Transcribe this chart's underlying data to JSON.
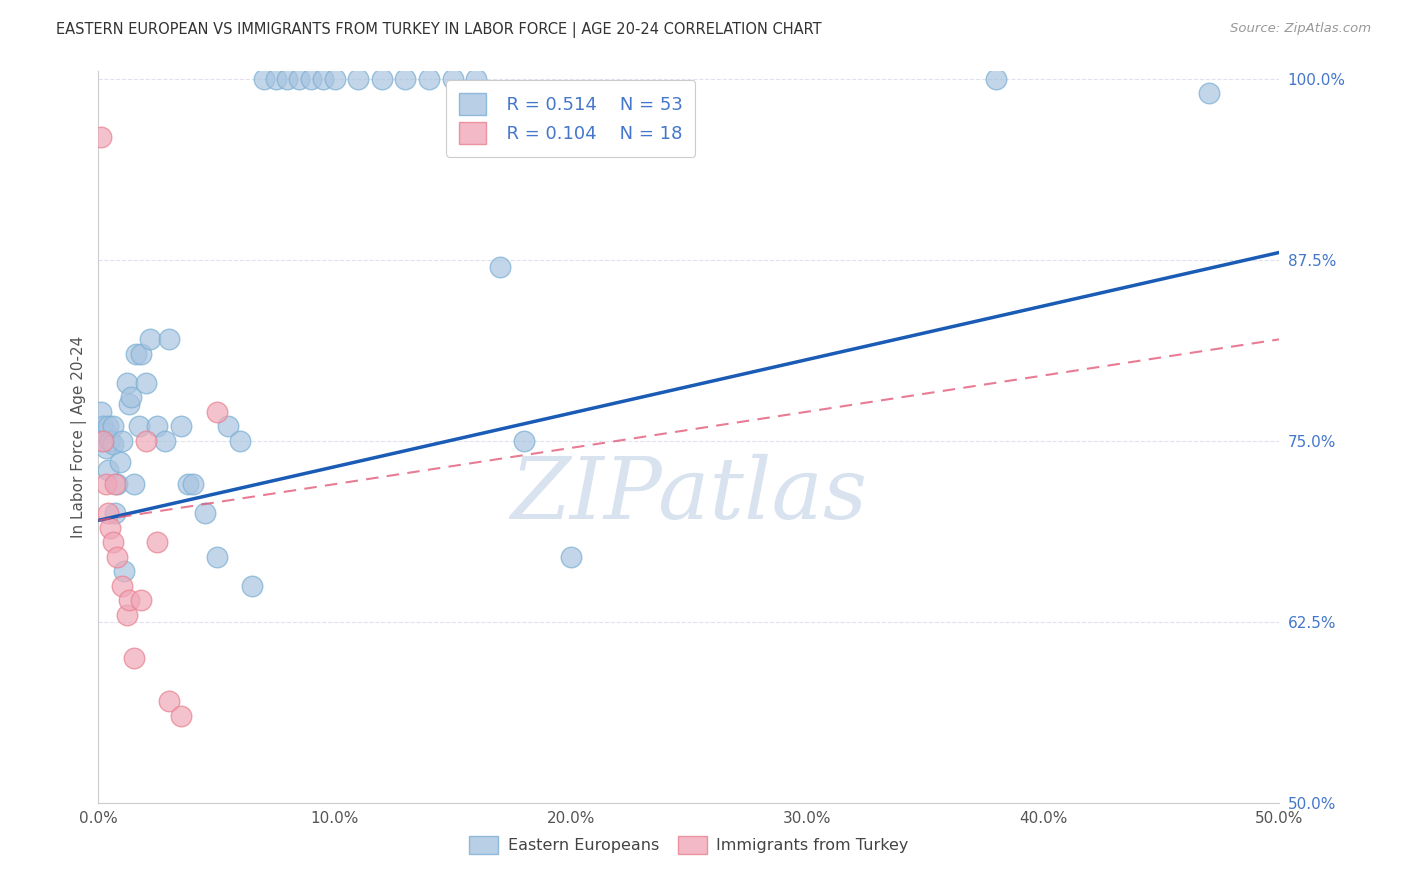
{
  "title": "EASTERN EUROPEAN VS IMMIGRANTS FROM TURKEY IN LABOR FORCE | AGE 20-24 CORRELATION CHART",
  "source": "Source: ZipAtlas.com",
  "ylabel": "In Labor Force | Age 20-24",
  "xlim": [
    0.0,
    0.5
  ],
  "ylim": [
    0.5,
    1.005
  ],
  "xticks": [
    0.0,
    0.1,
    0.2,
    0.3,
    0.4,
    0.5
  ],
  "yticks": [
    0.5,
    0.625,
    0.75,
    0.875,
    1.0
  ],
  "xticklabels": [
    "0.0%",
    "10.0%",
    "20.0%",
    "30.0%",
    "40.0%",
    "50.0%"
  ],
  "yticklabels": [
    "50.0%",
    "62.5%",
    "75.0%",
    "87.5%",
    "100.0%"
  ],
  "blue_color": "#A8C4E0",
  "pink_color": "#F0A8B8",
  "blue_edge_color": "#7AAFD4",
  "pink_edge_color": "#E88090",
  "blue_line_color": "#1A5BB5",
  "pink_line_color": "#E05070",
  "legend_R_blue": "R = 0.514",
  "legend_N_blue": "N = 53",
  "legend_R_pink": "R = 0.104",
  "legend_N_pink": "N = 18",
  "blue_scatter_x": [
    0.001,
    0.001,
    0.002,
    0.003,
    0.003,
    0.004,
    0.004,
    0.005,
    0.006,
    0.006,
    0.007,
    0.008,
    0.009,
    0.01,
    0.011,
    0.012,
    0.013,
    0.014,
    0.015,
    0.016,
    0.017,
    0.018,
    0.02,
    0.022,
    0.025,
    0.028,
    0.03,
    0.035,
    0.038,
    0.04,
    0.045,
    0.05,
    0.055,
    0.06,
    0.065,
    0.07,
    0.075,
    0.08,
    0.085,
    0.09,
    0.095,
    0.1,
    0.11,
    0.12,
    0.13,
    0.14,
    0.15,
    0.16,
    0.17,
    0.18,
    0.2,
    0.38,
    0.47
  ],
  "blue_scatter_y": [
    0.75,
    0.77,
    0.76,
    0.745,
    0.755,
    0.73,
    0.76,
    0.75,
    0.748,
    0.76,
    0.7,
    0.72,
    0.735,
    0.75,
    0.66,
    0.79,
    0.775,
    0.78,
    0.72,
    0.81,
    0.76,
    0.81,
    0.79,
    0.82,
    0.76,
    0.75,
    0.82,
    0.76,
    0.72,
    0.72,
    0.7,
    0.67,
    0.76,
    0.75,
    0.65,
    1.0,
    1.0,
    1.0,
    1.0,
    1.0,
    1.0,
    1.0,
    1.0,
    1.0,
    1.0,
    1.0,
    1.0,
    1.0,
    0.87,
    0.75,
    0.67,
    1.0,
    0.99
  ],
  "pink_scatter_x": [
    0.001,
    0.002,
    0.003,
    0.004,
    0.005,
    0.006,
    0.007,
    0.008,
    0.01,
    0.012,
    0.013,
    0.015,
    0.018,
    0.02,
    0.025,
    0.03,
    0.035,
    0.05
  ],
  "pink_scatter_y": [
    0.96,
    0.75,
    0.72,
    0.7,
    0.69,
    0.68,
    0.72,
    0.67,
    0.65,
    0.63,
    0.64,
    0.6,
    0.64,
    0.75,
    0.68,
    0.57,
    0.56,
    0.77
  ],
  "blue_trendline_x": [
    0.0,
    0.5
  ],
  "blue_trendline_y": [
    0.695,
    0.88
  ],
  "pink_trendline_x": [
    0.0,
    0.5
  ],
  "pink_trendline_y": [
    0.695,
    0.82
  ],
  "watermark": "ZIPatlas",
  "watermark_color": "#C5D5E8",
  "background_color": "#FFFFFF",
  "grid_color": "#DDDDEE",
  "tick_color": "#4477CC",
  "legend_label_color": "#4477CC"
}
